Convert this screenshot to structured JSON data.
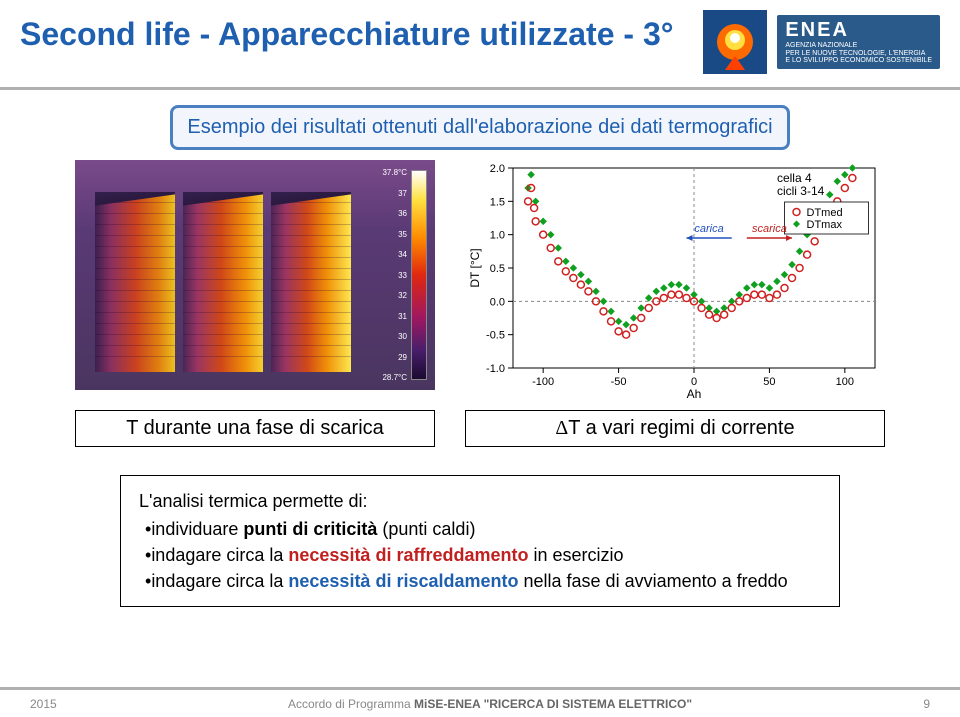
{
  "header": {
    "title": "Second life - Apparecchiature utilizzate - 3°",
    "logo": {
      "name": "ENEA",
      "tagline1": "AGENZIA NAZIONALE",
      "tagline2": "PER LE NUOVE TECNOLOGIE, L'ENERGIA",
      "tagline3": "E LO SVILUPPO ECONOMICO SOSTENIBILE"
    }
  },
  "example_box": "Esempio dei risultati ottenuti dall'elaborazione dei dati termografici",
  "thermal": {
    "colorbar": {
      "top": "37.8°C",
      "ticks": [
        "37",
        "36",
        "35",
        "34",
        "33",
        "32",
        "31",
        "30",
        "29"
      ],
      "bottom": "28.7°C"
    }
  },
  "scatter": {
    "type": "scatter",
    "title": "cella 4",
    "subtitle": "cicli 3-14",
    "legend": [
      "DTmed",
      "DTmax"
    ],
    "xlabel": "Ah",
    "ylabel": "DT [°C]",
    "xlim": [
      -120,
      120
    ],
    "ylim": [
      -1.0,
      2.0
    ],
    "xticks": [
      -100,
      -50,
      0,
      50,
      100
    ],
    "yticks": [
      -1.0,
      -0.5,
      0.0,
      0.5,
      1.0,
      1.5,
      2.0
    ],
    "carica_label": "carica",
    "scarica_label": "scarica",
    "background_color": "#ffffff",
    "axis_color": "#000000",
    "grid_color": "#000000",
    "dtmed_color": "#d02020",
    "dtmed_marker": "circle-open",
    "dtmax_color": "#10a020",
    "dtmax_marker": "diamond",
    "carica_color": "#2050c0",
    "scarica_color": "#c02020",
    "data_dtmed": [
      {
        "x": -110,
        "y": 1.5
      },
      {
        "x": -108,
        "y": 1.7
      },
      {
        "x": -106,
        "y": 1.4
      },
      {
        "x": -105,
        "y": 1.2
      },
      {
        "x": -100,
        "y": 1.0
      },
      {
        "x": -95,
        "y": 0.8
      },
      {
        "x": -90,
        "y": 0.6
      },
      {
        "x": -85,
        "y": 0.45
      },
      {
        "x": -80,
        "y": 0.35
      },
      {
        "x": -75,
        "y": 0.25
      },
      {
        "x": -70,
        "y": 0.15
      },
      {
        "x": -65,
        "y": 0.0
      },
      {
        "x": -60,
        "y": -0.15
      },
      {
        "x": -55,
        "y": -0.3
      },
      {
        "x": -50,
        "y": -0.45
      },
      {
        "x": -45,
        "y": -0.5
      },
      {
        "x": -40,
        "y": -0.4
      },
      {
        "x": -35,
        "y": -0.25
      },
      {
        "x": -30,
        "y": -0.1
      },
      {
        "x": -25,
        "y": 0.0
      },
      {
        "x": -20,
        "y": 0.05
      },
      {
        "x": -15,
        "y": 0.1
      },
      {
        "x": -10,
        "y": 0.1
      },
      {
        "x": -5,
        "y": 0.05
      },
      {
        "x": 0,
        "y": 0.0
      },
      {
        "x": 5,
        "y": -0.1
      },
      {
        "x": 10,
        "y": -0.2
      },
      {
        "x": 15,
        "y": -0.25
      },
      {
        "x": 20,
        "y": -0.2
      },
      {
        "x": 25,
        "y": -0.1
      },
      {
        "x": 30,
        "y": 0.0
      },
      {
        "x": 35,
        "y": 0.05
      },
      {
        "x": 40,
        "y": 0.1
      },
      {
        "x": 45,
        "y": 0.1
      },
      {
        "x": 50,
        "y": 0.05
      },
      {
        "x": 55,
        "y": 0.1
      },
      {
        "x": 60,
        "y": 0.2
      },
      {
        "x": 65,
        "y": 0.35
      },
      {
        "x": 70,
        "y": 0.5
      },
      {
        "x": 75,
        "y": 0.7
      },
      {
        "x": 80,
        "y": 0.9
      },
      {
        "x": 85,
        "y": 1.1
      },
      {
        "x": 90,
        "y": 1.3
      },
      {
        "x": 95,
        "y": 1.5
      },
      {
        "x": 100,
        "y": 1.7
      },
      {
        "x": 105,
        "y": 1.85
      }
    ],
    "data_dtmax": [
      {
        "x": -110,
        "y": 1.7
      },
      {
        "x": -108,
        "y": 1.9
      },
      {
        "x": -105,
        "y": 1.5
      },
      {
        "x": -100,
        "y": 1.2
      },
      {
        "x": -95,
        "y": 1.0
      },
      {
        "x": -90,
        "y": 0.8
      },
      {
        "x": -85,
        "y": 0.6
      },
      {
        "x": -80,
        "y": 0.5
      },
      {
        "x": -75,
        "y": 0.4
      },
      {
        "x": -70,
        "y": 0.3
      },
      {
        "x": -65,
        "y": 0.15
      },
      {
        "x": -60,
        "y": 0.0
      },
      {
        "x": -55,
        "y": -0.15
      },
      {
        "x": -50,
        "y": -0.3
      },
      {
        "x": -45,
        "y": -0.35
      },
      {
        "x": -40,
        "y": -0.25
      },
      {
        "x": -35,
        "y": -0.1
      },
      {
        "x": -30,
        "y": 0.05
      },
      {
        "x": -25,
        "y": 0.15
      },
      {
        "x": -20,
        "y": 0.2
      },
      {
        "x": -15,
        "y": 0.25
      },
      {
        "x": -10,
        "y": 0.25
      },
      {
        "x": -5,
        "y": 0.2
      },
      {
        "x": 0,
        "y": 0.1
      },
      {
        "x": 5,
        "y": 0.0
      },
      {
        "x": 10,
        "y": -0.1
      },
      {
        "x": 15,
        "y": -0.15
      },
      {
        "x": 20,
        "y": -0.1
      },
      {
        "x": 25,
        "y": 0.0
      },
      {
        "x": 30,
        "y": 0.1
      },
      {
        "x": 35,
        "y": 0.2
      },
      {
        "x": 40,
        "y": 0.25
      },
      {
        "x": 45,
        "y": 0.25
      },
      {
        "x": 50,
        "y": 0.2
      },
      {
        "x": 55,
        "y": 0.3
      },
      {
        "x": 60,
        "y": 0.4
      },
      {
        "x": 65,
        "y": 0.55
      },
      {
        "x": 70,
        "y": 0.75
      },
      {
        "x": 75,
        "y": 1.0
      },
      {
        "x": 80,
        "y": 1.2
      },
      {
        "x": 85,
        "y": 1.4
      },
      {
        "x": 90,
        "y": 1.6
      },
      {
        "x": 95,
        "y": 1.8
      },
      {
        "x": 100,
        "y": 1.9
      },
      {
        "x": 105,
        "y": 2.0
      }
    ]
  },
  "label_left": "T durante una fase di scarica",
  "label_right_delta": "Δ",
  "label_right": "T a vari regimi di corrente",
  "analysis": {
    "lead": "L'analisi termica permette di:",
    "l1a": "individuare ",
    "l1b": "punti di criticità",
    "l1c": " (punti caldi)",
    "l2a": "indagare circa la ",
    "l2b": "necessità di raffreddamento",
    "l2c": " in esercizio",
    "l3a": "indagare circa la ",
    "l3b": "necessità di riscaldamento",
    "l3c": " nella fase di avviamento a freddo"
  },
  "footer": {
    "year": "2015",
    "text1": "Accordo di Programma ",
    "text2": "MiSE-ENEA \"RICERCA DI SISTEMA ELETTRICO\"",
    "page": "9"
  }
}
